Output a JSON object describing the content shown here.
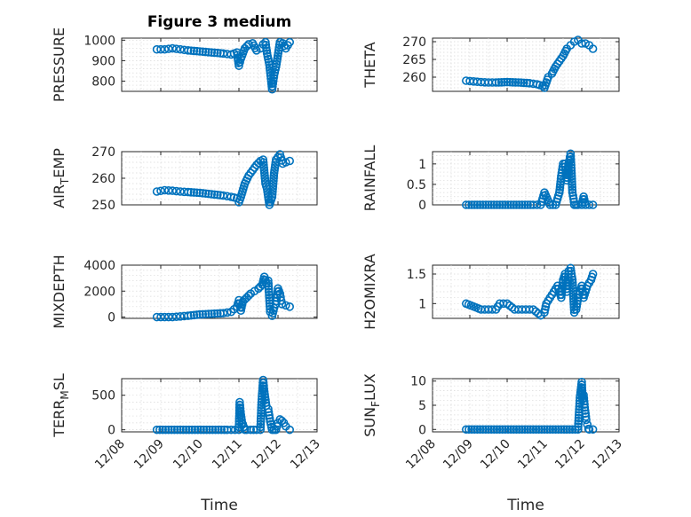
{
  "figure_title": "Figure 3 medium",
  "colors": {
    "marker": "#0072BD",
    "axis": "#262626",
    "grid": "#d9d9d9"
  },
  "chart_data": [
    {
      "type": "scatter",
      "title": "Figure 3 medium",
      "ylabel": "PRESSURE",
      "xlabel": "",
      "xlim": [
        0,
        5
      ],
      "ylim": [
        750,
        1010
      ],
      "xticks": [
        0,
        1,
        2,
        3,
        4,
        5
      ],
      "yticks": [
        800,
        900,
        1000
      ],
      "ytick_labels": [
        "800",
        "900",
        "1000"
      ],
      "grid": true,
      "x": [
        0.9,
        1.1,
        1.3,
        1.5,
        1.7,
        2.0,
        2.3,
        2.6,
        2.8,
        2.95,
        3.0,
        3.05,
        3.15,
        3.25,
        3.35,
        3.45,
        3.55,
        3.62,
        3.68,
        3.72,
        3.78,
        3.85,
        3.9,
        3.95,
        4.05,
        4.12,
        4.2,
        4.3
      ],
      "y": [
        955,
        955,
        960,
        955,
        950,
        945,
        940,
        935,
        930,
        940,
        875,
        910,
        960,
        980,
        985,
        950,
        960,
        980,
        990,
        935,
        880,
        760,
        830,
        870,
        990,
        985,
        960,
        990
      ]
    },
    {
      "type": "scatter",
      "ylabel": "THETA",
      "xlabel": "",
      "xlim": [
        0,
        5
      ],
      "ylim": [
        256,
        271
      ],
      "xticks": [
        0,
        1,
        2,
        3,
        4,
        5
      ],
      "yticks": [
        260,
        265,
        270
      ],
      "ytick_labels": [
        "260",
        "265",
        "270"
      ],
      "grid": true,
      "x": [
        0.9,
        1.1,
        1.3,
        1.5,
        1.7,
        2.0,
        2.3,
        2.6,
        2.8,
        2.95,
        3.0,
        3.05,
        3.1,
        3.2,
        3.3,
        3.4,
        3.5,
        3.6,
        3.7,
        3.8,
        3.9,
        4.0,
        4.1,
        4.2,
        4.3
      ],
      "y": [
        259,
        258.8,
        258.6,
        258.5,
        258.5,
        258.6,
        258.5,
        258.3,
        258,
        257.5,
        257,
        258.5,
        260,
        261,
        263,
        264.5,
        266,
        268,
        269,
        270,
        270.5,
        269.5,
        269.5,
        269,
        268
      ]
    },
    {
      "type": "scatter",
      "ylabel": "AIR_T_EMP",
      "ylabel_base": "AIR",
      "ylabel_sub": "T",
      "ylabel_rest": "EMP",
      "xlabel": "",
      "xlim": [
        0,
        5
      ],
      "ylim": [
        250,
        270
      ],
      "xticks": [
        0,
        1,
        2,
        3,
        4,
        5
      ],
      "yticks": [
        250,
        260,
        270
      ],
      "ytick_labels": [
        "250",
        "260",
        "270"
      ],
      "grid": true,
      "x": [
        0.9,
        1.1,
        1.3,
        1.5,
        1.7,
        2.0,
        2.3,
        2.6,
        2.8,
        2.95,
        3.0,
        3.05,
        3.15,
        3.25,
        3.35,
        3.45,
        3.55,
        3.62,
        3.68,
        3.72,
        3.78,
        3.85,
        3.9,
        3.95,
        4.05,
        4.12,
        4.2,
        4.3
      ],
      "y": [
        255,
        255.5,
        255.3,
        255,
        254.8,
        254.5,
        254,
        253.5,
        253,
        252.5,
        251,
        253,
        258,
        261,
        263,
        265,
        266.5,
        267,
        258,
        256,
        250,
        253,
        262,
        267,
        269,
        265.5,
        266,
        266.5
      ]
    },
    {
      "type": "scatter",
      "ylabel": "RAINFALL",
      "xlabel": "",
      "xlim": [
        0,
        5
      ],
      "ylim": [
        0,
        1.3
      ],
      "xticks": [
        0,
        1,
        2,
        3,
        4,
        5
      ],
      "yticks": [
        0,
        0.5,
        1
      ],
      "ytick_labels": [
        "0",
        "0.5",
        "1"
      ],
      "grid": true,
      "x": [
        0.9,
        1.2,
        1.5,
        1.8,
        2.1,
        2.4,
        2.7,
        2.9,
        3.0,
        3.15,
        3.3,
        3.4,
        3.45,
        3.5,
        3.55,
        3.6,
        3.65,
        3.7,
        3.72,
        3.75,
        3.78,
        3.8,
        3.85,
        3.9,
        4.0,
        4.05,
        4.1,
        4.2,
        4.3
      ],
      "y": [
        0,
        0,
        0,
        0,
        0,
        0,
        0,
        0,
        0.3,
        0,
        0,
        0.3,
        0.7,
        1.0,
        1.0,
        0.6,
        1.0,
        1.25,
        0.9,
        0.3,
        0.15,
        0,
        0,
        0,
        0,
        0.2,
        0,
        0,
        0
      ]
    },
    {
      "type": "scatter",
      "ylabel": "MIXDEPTH",
      "xlabel": "",
      "xlim": [
        0,
        5
      ],
      "ylim": [
        -100,
        4000
      ],
      "xticks": [
        0,
        1,
        2,
        3,
        4,
        5
      ],
      "yticks": [
        0,
        2000,
        4000
      ],
      "ytick_labels": [
        "0",
        "2000",
        "4000"
      ],
      "grid": true,
      "x": [
        0.9,
        1.1,
        1.3,
        1.5,
        1.7,
        2.0,
        2.3,
        2.6,
        2.8,
        2.95,
        3.0,
        3.05,
        3.1,
        3.2,
        3.3,
        3.4,
        3.5,
        3.6,
        3.65,
        3.7,
        3.75,
        3.8,
        3.85,
        3.9,
        3.95,
        4.0,
        4.05,
        4.1,
        4.2,
        4.3
      ],
      "y": [
        0,
        0,
        0,
        50,
        100,
        200,
        250,
        300,
        400,
        800,
        1300,
        500,
        1200,
        1500,
        1800,
        2000,
        2200,
        2500,
        3100,
        2600,
        2800,
        400,
        100,
        700,
        1000,
        2200,
        1800,
        1000,
        900,
        800
      ]
    },
    {
      "type": "scatter",
      "ylabel": "H2OMIXRA",
      "xlabel": "",
      "xlim": [
        0,
        5
      ],
      "ylim": [
        0.75,
        1.65
      ],
      "xticks": [
        0,
        1,
        2,
        3,
        4,
        5
      ],
      "yticks": [
        1,
        1.5
      ],
      "ytick_labels": [
        "1",
        "1.5"
      ],
      "grid": true,
      "x": [
        0.9,
        1.1,
        1.3,
        1.5,
        1.7,
        1.8,
        2.0,
        2.2,
        2.3,
        2.5,
        2.7,
        2.9,
        3.0,
        3.05,
        3.15,
        3.25,
        3.35,
        3.45,
        3.5,
        3.55,
        3.6,
        3.65,
        3.7,
        3.75,
        3.8,
        3.85,
        3.9,
        3.95,
        4.0,
        4.05,
        4.15,
        4.25,
        4.3
      ],
      "y": [
        1,
        0.95,
        0.9,
        0.9,
        0.9,
        1.0,
        1.0,
        0.9,
        0.9,
        0.9,
        0.9,
        0.8,
        0.85,
        1.0,
        1.1,
        1.2,
        1.3,
        1.1,
        1.4,
        1.5,
        1.2,
        1.55,
        1.6,
        1.4,
        0.85,
        0.9,
        1.1,
        1.2,
        1.3,
        1.1,
        1.3,
        1.4,
        1.5
      ]
    },
    {
      "type": "scatter",
      "ylabel": "TERR_MSL",
      "ylabel_base": "TERR",
      "ylabel_sub": "M",
      "ylabel_rest": "SL",
      "xlabel": "Time",
      "xlim": [
        0,
        5
      ],
      "ylim": [
        -30,
        740
      ],
      "xticks": [
        0,
        1,
        2,
        3,
        4,
        5
      ],
      "xtick_labels": [
        "12/08",
        "12/09",
        "12/10",
        "12/11",
        "12/12",
        "12/13"
      ],
      "yticks": [
        0,
        500
      ],
      "ytick_labels": [
        "0",
        "500"
      ],
      "grid": true,
      "x": [
        0.9,
        1.2,
        1.5,
        1.8,
        2.1,
        2.4,
        2.7,
        2.9,
        3.0,
        3.02,
        3.05,
        3.08,
        3.1,
        3.15,
        3.2,
        3.3,
        3.45,
        3.55,
        3.58,
        3.62,
        3.65,
        3.7,
        3.75,
        3.8,
        3.85,
        3.9,
        3.95,
        4.0,
        4.05,
        4.1,
        4.15,
        4.2,
        4.3
      ],
      "y": [
        0,
        0,
        0,
        0,
        0,
        0,
        0,
        0,
        0,
        400,
        220,
        100,
        80,
        0,
        0,
        0,
        0,
        0,
        400,
        720,
        550,
        350,
        300,
        120,
        0,
        0,
        0,
        100,
        150,
        130,
        100,
        50,
        0
      ]
    },
    {
      "type": "scatter",
      "ylabel": "SUN_FLUX",
      "ylabel_base": "SUN",
      "ylabel_sub": "F",
      "ylabel_rest": "LUX",
      "xlabel": "Time",
      "xlim": [
        0,
        5
      ],
      "ylim": [
        -0.5,
        10.5
      ],
      "xticks": [
        0,
        1,
        2,
        3,
        4,
        5
      ],
      "xtick_labels": [
        "12/08",
        "12/09",
        "12/10",
        "12/11",
        "12/12",
        "12/13"
      ],
      "yticks": [
        0,
        5,
        10
      ],
      "ytick_labels": [
        "0",
        "5",
        "10"
      ],
      "grid": true,
      "x": [
        0.9,
        1.2,
        1.5,
        1.8,
        2.1,
        2.4,
        2.7,
        3.0,
        3.3,
        3.6,
        3.9,
        3.95,
        4.0,
        4.02,
        4.05,
        4.08,
        4.1,
        4.12,
        4.15,
        4.18,
        4.2,
        4.3
      ],
      "y": [
        0,
        0,
        0,
        0,
        0,
        0,
        0,
        0,
        0,
        0,
        0,
        6.5,
        9.8,
        6.2,
        7.1,
        4.5,
        3.3,
        2.0,
        1.0,
        0.1,
        0,
        0
      ]
    }
  ]
}
